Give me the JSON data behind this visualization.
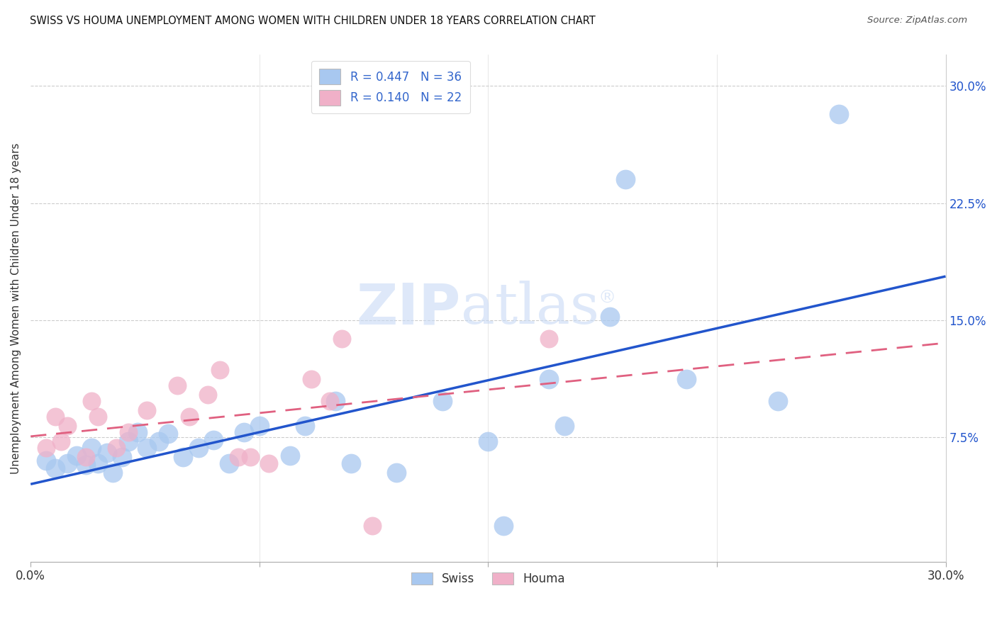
{
  "title": "SWISS VS HOUMA UNEMPLOYMENT AMONG WOMEN WITH CHILDREN UNDER 18 YEARS CORRELATION CHART",
  "source": "Source: ZipAtlas.com",
  "ylabel": "Unemployment Among Women with Children Under 18 years",
  "xlim": [
    0.0,
    0.3
  ],
  "ylim": [
    -0.005,
    0.32
  ],
  "ytick_positions": [
    0.075,
    0.15,
    0.225,
    0.3
  ],
  "ytick_labels": [
    "7.5%",
    "15.0%",
    "22.5%",
    "30.0%"
  ],
  "swiss_color": "#a8c8f0",
  "houma_color": "#f0b0c8",
  "swiss_line_color": "#2255cc",
  "houma_line_color": "#e06080",
  "legend_r_color": "#3366cc",
  "swiss_R": 0.447,
  "swiss_N": 36,
  "houma_R": 0.14,
  "houma_N": 22,
  "watermark_zip": "ZIP",
  "watermark_atlas": "atlas",
  "swiss_x": [
    0.005,
    0.008,
    0.012,
    0.015,
    0.018,
    0.02,
    0.022,
    0.025,
    0.027,
    0.03,
    0.032,
    0.035,
    0.038,
    0.042,
    0.045,
    0.05,
    0.055,
    0.06,
    0.065,
    0.07,
    0.075,
    0.085,
    0.09,
    0.1,
    0.105,
    0.12,
    0.135,
    0.15,
    0.155,
    0.17,
    0.175,
    0.19,
    0.195,
    0.215,
    0.245,
    0.265
  ],
  "swiss_y": [
    0.06,
    0.055,
    0.058,
    0.063,
    0.057,
    0.068,
    0.058,
    0.065,
    0.052,
    0.062,
    0.072,
    0.078,
    0.068,
    0.072,
    0.077,
    0.062,
    0.068,
    0.073,
    0.058,
    0.078,
    0.082,
    0.063,
    0.082,
    0.098,
    0.058,
    0.052,
    0.098,
    0.072,
    0.018,
    0.112,
    0.082,
    0.152,
    0.24,
    0.112,
    0.098,
    0.282
  ],
  "houma_x": [
    0.005,
    0.008,
    0.01,
    0.012,
    0.018,
    0.02,
    0.022,
    0.028,
    0.032,
    0.038,
    0.048,
    0.052,
    0.058,
    0.062,
    0.068,
    0.072,
    0.078,
    0.092,
    0.098,
    0.102,
    0.112,
    0.17
  ],
  "houma_y": [
    0.068,
    0.088,
    0.072,
    0.082,
    0.062,
    0.098,
    0.088,
    0.068,
    0.078,
    0.092,
    0.108,
    0.088,
    0.102,
    0.118,
    0.062,
    0.062,
    0.058,
    0.112,
    0.098,
    0.138,
    0.018,
    0.138
  ]
}
